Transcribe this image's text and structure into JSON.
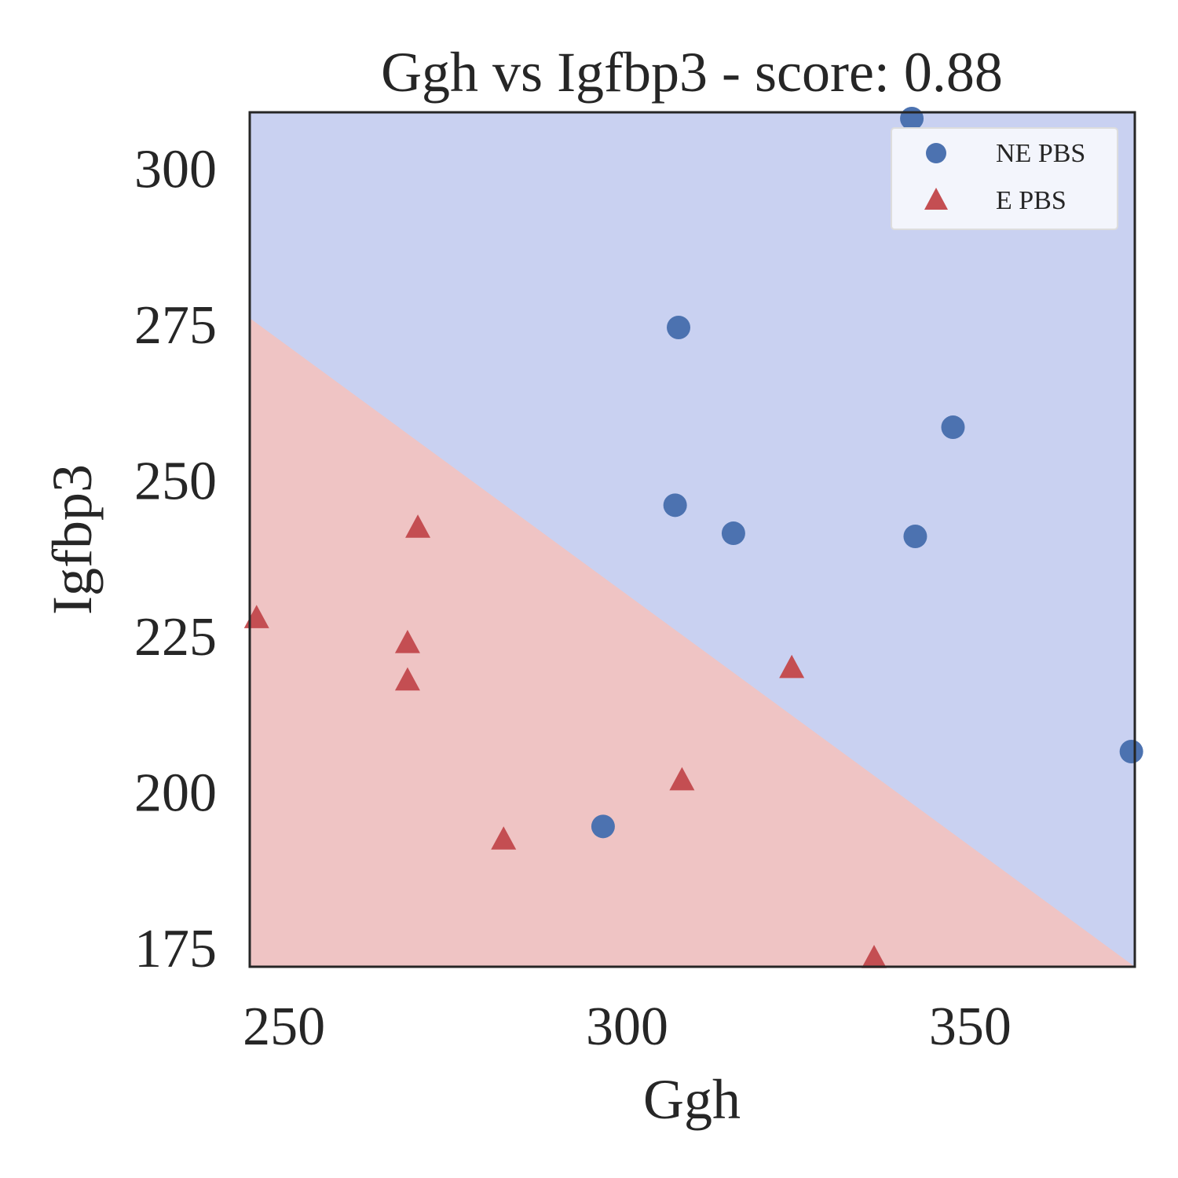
{
  "chart_data": {
    "type": "scatter",
    "title": "Ggh vs Igfbp3 - score: 0.88",
    "xlabel": "Ggh",
    "ylabel": "Igfbp3",
    "xlim": [
      245,
      374
    ],
    "ylim": [
      172,
      309
    ],
    "xticks": [
      250,
      300,
      350
    ],
    "yticks": [
      175,
      200,
      225,
      250,
      275,
      300
    ],
    "grid": false,
    "legend_position": "top-right",
    "decision_boundary": {
      "points": [
        [
          245,
          276
        ],
        [
          374,
          172
        ]
      ],
      "region_above_color": "#c9d1f1",
      "region_below_color": "#efc4c4"
    },
    "series": [
      {
        "name": "NE PBS",
        "marker": "circle",
        "color": "#4c72b0",
        "points": [
          [
            341.5,
            308.0
          ],
          [
            307.5,
            274.5
          ],
          [
            347.5,
            258.5
          ],
          [
            307.0,
            246.0
          ],
          [
            315.5,
            241.5
          ],
          [
            342.0,
            241.0
          ],
          [
            296.5,
            194.5
          ],
          [
            373.5,
            206.5
          ]
        ]
      },
      {
        "name": "E PBS",
        "marker": "triangle",
        "color": "#c44e52",
        "points": [
          [
            269.5,
            242.5
          ],
          [
            246.0,
            228.0
          ],
          [
            268.0,
            224.0
          ],
          [
            268.0,
            218.0
          ],
          [
            324.0,
            220.0
          ],
          [
            308.0,
            202.0
          ],
          [
            282.0,
            192.5
          ],
          [
            336.0,
            173.5
          ]
        ]
      }
    ]
  }
}
